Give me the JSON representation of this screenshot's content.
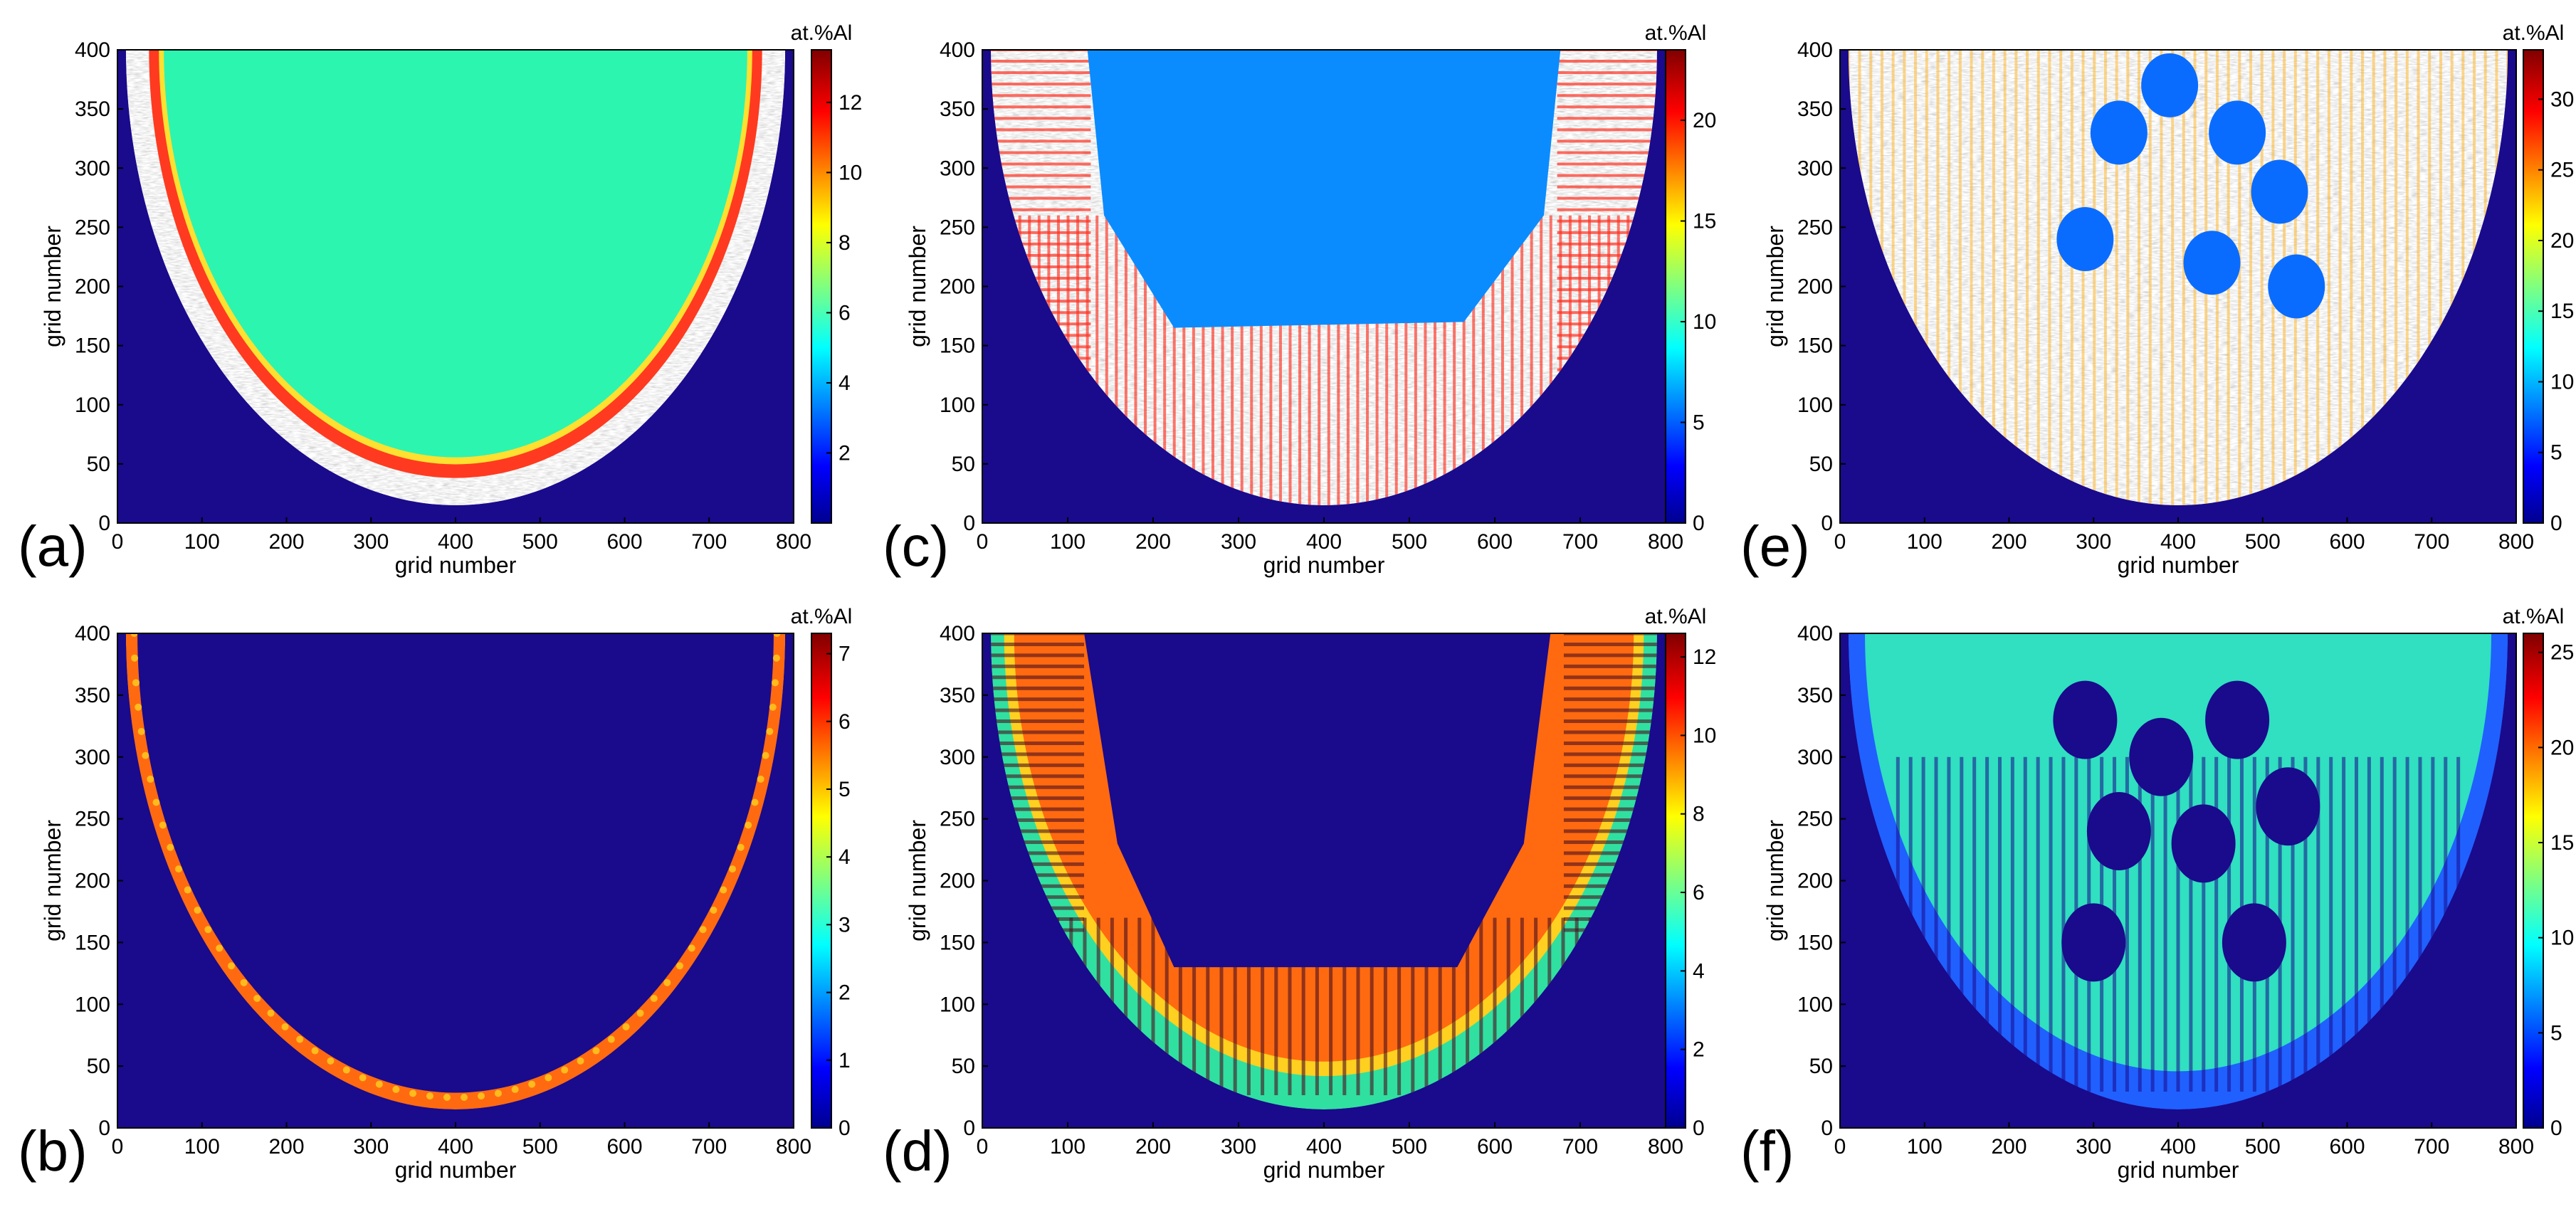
{
  "figure": {
    "panels": [
      {
        "id": "a",
        "label": "(a)",
        "xlabel": "grid number",
        "ylabel": "grid number",
        "cbar_title": "at.%Al",
        "cbar_ticks": [
          "2",
          "4",
          "6",
          "8",
          "10",
          "12"
        ],
        "cbar_values": [
          2,
          4,
          6,
          8,
          10,
          12
        ],
        "cbar_max": 13.5,
        "style": "fill",
        "fill_color": "#2cf5b0",
        "rim": "#ff3a20",
        "bg": "#1a0a8c"
      },
      {
        "id": "b",
        "label": "(b)",
        "xlabel": "grid number",
        "ylabel": "grid number",
        "cbar_title": "at.%Al",
        "cbar_ticks": [
          "0",
          "1",
          "2",
          "3",
          "4",
          "5",
          "6",
          "7"
        ],
        "cbar_values": [
          0,
          1,
          2,
          3,
          4,
          5,
          6,
          7
        ],
        "cbar_max": 7.3,
        "style": "rim",
        "rim": "#ff6a10",
        "bg": "#1a0a8c"
      },
      {
        "id": "c",
        "label": "(c)",
        "xlabel": "grid number",
        "ylabel": "grid number",
        "cbar_title": "at.%Al",
        "cbar_ticks": [
          "0",
          "5",
          "10",
          "15",
          "20"
        ],
        "cbar_values": [
          0,
          5,
          10,
          15,
          20
        ],
        "cbar_max": 23.5,
        "style": "cavity",
        "fill_color": "#0a8cff",
        "rim": "#ff3020",
        "bg": "#1a0a8c"
      },
      {
        "id": "d",
        "label": "(d)",
        "xlabel": "grid number",
        "ylabel": "grid number",
        "cbar_title": "at.%Al",
        "cbar_ticks": [
          "0",
          "2",
          "4",
          "6",
          "8",
          "10",
          "12"
        ],
        "cbar_values": [
          0,
          2,
          4,
          6,
          8,
          10,
          12
        ],
        "cbar_max": 12.6,
        "style": "dendrite",
        "rim": "#ff7a10",
        "bg": "#1a0a8c"
      },
      {
        "id": "e",
        "label": "(e)",
        "xlabel": "grid number",
        "ylabel": "grid number",
        "cbar_title": "at.%Al",
        "cbar_ticks": [
          "0",
          "5",
          "10",
          "15",
          "20",
          "25",
          "30"
        ],
        "cbar_values": [
          0,
          5,
          10,
          15,
          20,
          25,
          30
        ],
        "cbar_max": 33.5,
        "style": "mixed",
        "fill_color": "#0a6cff",
        "rim": "#ffb830",
        "bg": "#1a0a8c"
      },
      {
        "id": "f",
        "label": "(f)",
        "xlabel": "grid number",
        "ylabel": "grid number",
        "cbar_title": "at.%Al",
        "cbar_ticks": [
          "0",
          "5",
          "10",
          "15",
          "20",
          "25"
        ],
        "cbar_values": [
          0,
          5,
          10,
          15,
          20,
          25
        ],
        "cbar_max": 26,
        "style": "cyan",
        "rim": "#30e0c0",
        "bg": "#1a0a8c"
      }
    ]
  },
  "chart_data": {
    "type": "heatmap",
    "description_units": "at.%Al over grid cells",
    "x_ticks": [
      "0",
      "100",
      "200",
      "300",
      "400",
      "500",
      "600",
      "700",
      "800"
    ],
    "x_values": [
      0,
      100,
      200,
      300,
      400,
      500,
      600,
      700,
      800
    ],
    "y_ticks": [
      "0",
      "50",
      "100",
      "150",
      "200",
      "250",
      "300",
      "350",
      "400"
    ],
    "y_values": [
      0,
      50,
      100,
      150,
      200,
      250,
      300,
      350,
      400
    ],
    "xlim": [
      0,
      800
    ],
    "ylim": [
      0,
      400
    ],
    "xlabel": "grid number",
    "ylabel": "grid number",
    "colorbar_label": "at.%Al",
    "pool_boundary": {
      "center_x": 400,
      "bottom_y": 15,
      "half_width": 390
    }
  }
}
